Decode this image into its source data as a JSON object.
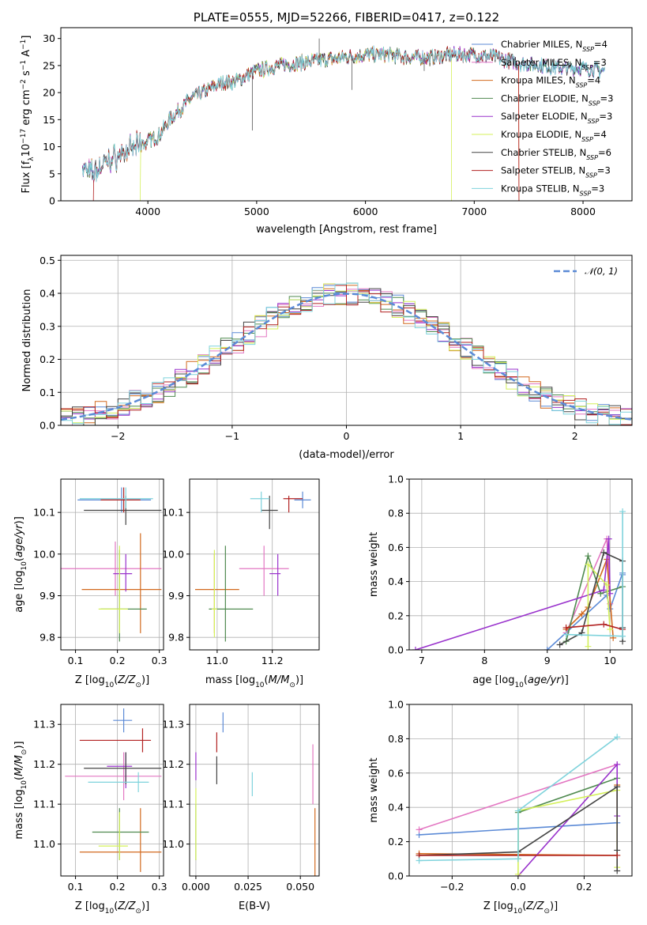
{
  "palette": {
    "Chabrier MILES": "#5b8ad6",
    "Salpeter MILES": "#e377c2",
    "Kroupa MILES": "#d2691e",
    "Chabrier ELODIE": "#4f8a4f",
    "Salpeter ELODIE": "#9932cc",
    "Kroupa ELODIE": "#d4f05a",
    "Chabrier STELIB": "#444444",
    "Salpeter STELIB": "#b22222",
    "Kroupa STELIB": "#7fd3dc"
  },
  "chart_data": [
    {
      "id": "spectrum",
      "type": "line",
      "title": "PLATE=0555, MJD=52266, FIBERID=0417, z=0.122",
      "xlabel": "wavelength [Angstrom, rest frame]",
      "ylabel": "Flux [f_λ10^-17 erg cm^-2 s^-1 A^-1]",
      "xlim": [
        3200,
        8450
      ],
      "ylim": [
        0,
        32
      ],
      "xticks": [
        "4000",
        "5000",
        "6000",
        "7000",
        "8000"
      ],
      "yticks": [
        "0",
        "5",
        "10",
        "15",
        "20",
        "25",
        "30"
      ],
      "grid": false,
      "legend_position": "top-right",
      "legend": [
        {
          "name": "Chabrier MILES",
          "nssp": "4"
        },
        {
          "name": "Salpeter MILES",
          "nssp": "3"
        },
        {
          "name": "Kroupa MILES",
          "nssp": "4"
        },
        {
          "name": "Chabrier ELODIE",
          "nssp": "3"
        },
        {
          "name": "Salpeter ELODIE",
          "nssp": "3"
        },
        {
          "name": "Kroupa ELODIE",
          "nssp": "4"
        },
        {
          "name": "Chabrier STELIB",
          "nssp": "6"
        },
        {
          "name": "Salpeter STELIB",
          "nssp": "3"
        },
        {
          "name": "Kroupa STELIB",
          "nssp": "3"
        }
      ],
      "continuum": {
        "x": [
          3400,
          3500,
          3600,
          3700,
          3800,
          3900,
          4000,
          4100,
          4200,
          4300,
          4400,
          4500,
          4600,
          4700,
          4800,
          4900,
          5000,
          5200,
          5400,
          5600,
          5800,
          6000,
          6200,
          6400,
          6600,
          6800,
          7000,
          7200,
          7400,
          7600,
          7800,
          8000,
          8200
        ],
        "y": [
          6,
          5,
          7,
          8,
          9,
          10,
          11,
          12,
          15,
          17,
          19,
          20,
          21,
          22,
          22,
          23,
          24,
          25,
          25.5,
          26,
          26.5,
          27,
          27,
          26.5,
          26.5,
          27,
          27,
          26.5,
          25.5,
          25,
          24.5,
          24.5,
          24
        ]
      },
      "model_start_wavelength": [
        3400,
        3400,
        3400,
        3400,
        3400,
        3930,
        3400,
        3500,
        3400
      ],
      "model_end_wavelength": [
        8200,
        8200,
        7410,
        8200,
        8200,
        6790,
        8200,
        7410,
        8200
      ]
    },
    {
      "id": "residual-histogram",
      "type": "histogram",
      "xlabel": "(data-model)/error",
      "ylabel": "Normed distribution",
      "xlim": [
        -2.5,
        2.5
      ],
      "ylim": [
        0,
        0.515
      ],
      "xticks": [
        "−2",
        "−1",
        "0",
        "1",
        "2"
      ],
      "yticks": [
        "0.0",
        "0.1",
        "0.2",
        "0.3",
        "0.4",
        "0.5"
      ],
      "grid": true,
      "legend_position": "top-right",
      "legend": [
        "𝒩(0, 1)"
      ],
      "reference_curve": "normal(0,1)",
      "bin_width": 0.1
    },
    {
      "id": "Z-vs-age",
      "type": "errorbar",
      "xlabel": "Z [log10(Z/Z⊙)]",
      "ylabel": "age  [log10(age/yr)]",
      "xlim": [
        0.065,
        0.31
      ],
      "ylim": [
        9.77,
        10.18
      ],
      "xticks": [
        "0.1",
        "0.2",
        "0.3"
      ],
      "yticks": [
        "9.8",
        "9.9",
        "10.0",
        "10.1"
      ],
      "grid": true,
      "points": [
        {
          "x": 0.21,
          "y": 10.13,
          "xerr": [
            0.105,
            0.28
          ],
          "yerr": [
            10.1,
            10.16
          ]
        },
        {
          "x": 0.195,
          "y": 9.965,
          "xerr": [
            0.065,
            0.305
          ],
          "yerr": [
            9.9,
            10.03
          ]
        },
        {
          "x": 0.255,
          "y": 9.915,
          "xerr": [
            0.115,
            0.305
          ],
          "yerr": [
            9.81,
            10.05
          ]
        },
        {
          "x": 0.205,
          "y": 9.868,
          "xerr": [
            0.16,
            0.27
          ],
          "yerr": [
            9.79,
            10.01
          ]
        },
        {
          "x": 0.22,
          "y": 9.953,
          "xerr": [
            0.19,
            0.235
          ],
          "yerr": [
            9.91,
            10.0
          ]
        },
        {
          "x": 0.205,
          "y": 9.868,
          "xerr": [
            0.155,
            0.225
          ],
          "yerr": [
            9.81,
            10.02
          ]
        },
        {
          "x": 0.22,
          "y": 10.105,
          "xerr": [
            0.12,
            0.305
          ],
          "yerr": [
            10.07,
            10.14
          ]
        },
        {
          "x": 0.215,
          "y": 10.13,
          "xerr": [
            0.16,
            0.255
          ],
          "yerr": [
            10.1,
            10.16
          ]
        },
        {
          "x": 0.22,
          "y": 10.133,
          "xerr": [
            0.11,
            0.285
          ],
          "yerr": [
            10.11,
            10.16
          ]
        }
      ]
    },
    {
      "id": "mass-vs-age",
      "type": "errorbar",
      "xlabel": "mass [log10(M/M⊙)]",
      "ylabel": "",
      "xlim": [
        10.9,
        11.37
      ],
      "ylim": [
        9.77,
        10.18
      ],
      "xticks": [
        "11.0",
        "11.2"
      ],
      "yticks": [
        "9.8",
        "9.9",
        "10.0",
        "10.1"
      ],
      "grid": true,
      "points": [
        {
          "x": 11.31,
          "y": 10.13,
          "xerr": [
            11.28,
            11.34
          ],
          "yerr": [
            10.11,
            10.15
          ]
        },
        {
          "x": 11.17,
          "y": 9.965,
          "xerr": [
            11.08,
            11.26
          ],
          "yerr": [
            9.9,
            10.02
          ]
        },
        {
          "x": 10.99,
          "y": 9.915,
          "xerr": [
            10.92,
            11.08
          ],
          "yerr": [
            9.81,
            10.0
          ]
        },
        {
          "x": 11.03,
          "y": 9.868,
          "xerr": [
            10.97,
            11.13
          ],
          "yerr": [
            9.79,
            10.02
          ]
        },
        {
          "x": 11.22,
          "y": 9.953,
          "xerr": [
            11.19,
            11.23
          ],
          "yerr": [
            9.9,
            10.0
          ]
        },
        {
          "x": 10.99,
          "y": 9.868,
          "xerr": [
            10.98,
            11.0
          ],
          "yerr": [
            9.8,
            10.01
          ]
        },
        {
          "x": 11.19,
          "y": 10.105,
          "xerr": [
            11.16,
            11.22
          ],
          "yerr": [
            10.06,
            10.14
          ]
        },
        {
          "x": 11.26,
          "y": 10.133,
          "xerr": [
            11.24,
            11.31
          ],
          "yerr": [
            10.1,
            10.14
          ]
        },
        {
          "x": 11.16,
          "y": 10.133,
          "xerr": [
            11.12,
            11.19
          ],
          "yerr": [
            10.1,
            10.15
          ]
        }
      ]
    },
    {
      "id": "age-vs-mass-weight",
      "type": "line",
      "xlabel": "age  [log10(age/yr)]",
      "ylabel": "mass weight",
      "xlim": [
        6.8,
        10.35
      ],
      "ylim": [
        0,
        1
      ],
      "xticks": [
        "7",
        "8",
        "9",
        "10"
      ],
      "yticks": [
        "0.0",
        "0.2",
        "0.4",
        "0.6",
        "0.8",
        "1.0"
      ],
      "grid": true,
      "series": [
        {
          "x": [
            9.0,
            9.95,
            10.0,
            10.2,
            10.2
          ],
          "y": [
            0.0,
            0.32,
            0.24,
            0.45,
            0.44
          ]
        },
        {
          "x": [
            9.3,
            9.95,
            10.0
          ],
          "y": [
            0.1,
            0.65,
            0.27
          ]
        },
        {
          "x": [
            9.3,
            9.55,
            9.65,
            9.95,
            10.05
          ],
          "y": [
            0.12,
            0.21,
            0.25,
            0.53,
            0.07
          ]
        },
        {
          "x": [
            9.3,
            9.65,
            9.85,
            10.2
          ],
          "y": [
            0.05,
            0.55,
            0.33,
            0.37
          ]
        },
        {
          "x": [
            6.9,
            9.9,
            9.98,
            10.0
          ],
          "y": [
            0.0,
            0.35,
            0.65,
            0.33
          ]
        },
        {
          "x": [
            9.65,
            9.65,
            9.95,
            10.0
          ],
          "y": [
            0.02,
            0.5,
            0.38,
            0.12
          ]
        },
        {
          "x": [
            9.2,
            9.55,
            9.9,
            10.2,
            10.2,
            10.2
          ],
          "y": [
            0.03,
            0.1,
            0.57,
            0.52,
            0.05,
            0.13
          ]
        },
        {
          "x": [
            9.3,
            9.9,
            10.2
          ],
          "y": [
            0.13,
            0.15,
            0.12
          ]
        },
        {
          "x": [
            9.3,
            10.2,
            10.2
          ],
          "y": [
            0.09,
            0.08,
            0.81
          ]
        }
      ]
    },
    {
      "id": "Z-vs-mass",
      "type": "errorbar",
      "xlabel": "Z [log10(Z/Z⊙)]",
      "ylabel": "mass [log10(M/M⊙)]",
      "xlim": [
        0.065,
        0.31
      ],
      "ylim": [
        10.92,
        11.35
      ],
      "xticks": [
        "0.1",
        "0.2",
        "0.3"
      ],
      "yticks": [
        "11.0",
        "11.1",
        "11.2",
        "11.3"
      ],
      "grid": true,
      "points": [
        {
          "x": 0.215,
          "y": 11.31,
          "xerr": [
            0.19,
            0.235
          ],
          "yerr": [
            11.28,
            11.34
          ]
        },
        {
          "x": 0.215,
          "y": 11.17,
          "xerr": [
            0.075,
            0.305
          ],
          "yerr": [
            11.11,
            11.23
          ]
        },
        {
          "x": 0.255,
          "y": 10.98,
          "xerr": [
            0.11,
            0.305
          ],
          "yerr": [
            10.93,
            11.09
          ]
        },
        {
          "x": 0.205,
          "y": 11.03,
          "xerr": [
            0.14,
            0.275
          ],
          "yerr": [
            10.96,
            11.09
          ]
        },
        {
          "x": 0.22,
          "y": 11.195,
          "xerr": [
            0.175,
            0.235
          ],
          "yerr": [
            11.14,
            11.23
          ]
        },
        {
          "x": 0.205,
          "y": 10.995,
          "xerr": [
            0.155,
            0.225
          ],
          "yerr": [
            10.96,
            11.08
          ]
        },
        {
          "x": 0.22,
          "y": 11.19,
          "xerr": [
            0.12,
            0.305
          ],
          "yerr": [
            11.15,
            11.23
          ]
        },
        {
          "x": 0.26,
          "y": 11.26,
          "xerr": [
            0.11,
            0.28
          ],
          "yerr": [
            11.23,
            11.29
          ]
        },
        {
          "x": 0.25,
          "y": 11.155,
          "xerr": [
            0.13,
            0.275
          ],
          "yerr": [
            11.13,
            11.18
          ]
        }
      ]
    },
    {
      "id": "EBV-vs-mass",
      "type": "errorbar",
      "xlabel": "E(B-V)",
      "ylabel": "",
      "xlim": [
        -0.003,
        0.059
      ],
      "ylim": [
        10.92,
        11.35
      ],
      "xticks": [
        "0.000",
        "0.025",
        "0.050"
      ],
      "yticks": [
        "11.0",
        "11.1",
        "11.2",
        "11.3"
      ],
      "grid": true,
      "points": [
        {
          "x": 0.013,
          "y": 11.31,
          "xerr": [
            0.013,
            0.013
          ],
          "yerr": [
            11.28,
            11.33
          ]
        },
        {
          "x": 0.056,
          "y": 11.17,
          "xerr": [
            0.056,
            0.056
          ],
          "yerr": [
            11.1,
            11.25
          ]
        },
        {
          "x": 0.057,
          "y": 10.98,
          "xerr": [
            0.057,
            0.057
          ],
          "yerr": [
            10.92,
            11.09
          ]
        },
        {
          "x": 0.0,
          "y": 11.03,
          "xerr": [
            0.0,
            0.0
          ],
          "yerr": [
            10.96,
            11.1
          ]
        },
        {
          "x": 0.0,
          "y": 11.19,
          "xerr": [
            0.0,
            0.0
          ],
          "yerr": [
            11.16,
            11.23
          ]
        },
        {
          "x": 0.0,
          "y": 11.06,
          "xerr": [
            0.0,
            0.0
          ],
          "yerr": [
            10.96,
            11.14
          ]
        },
        {
          "x": 0.01,
          "y": 11.19,
          "xerr": [
            0.01,
            0.01
          ],
          "yerr": [
            11.15,
            11.22
          ]
        },
        {
          "x": 0.01,
          "y": 11.26,
          "xerr": [
            0.01,
            0.01
          ],
          "yerr": [
            11.23,
            11.28
          ]
        },
        {
          "x": 0.027,
          "y": 11.15,
          "xerr": [
            0.027,
            0.027
          ],
          "yerr": [
            11.12,
            11.18
          ]
        }
      ]
    },
    {
      "id": "Z-vs-mass-weight",
      "type": "line",
      "xlabel": "Z [log10(Z/Z⊙)]",
      "ylabel": "mass weight",
      "xlim": [
        -0.33,
        0.345
      ],
      "ylim": [
        0,
        1
      ],
      "xticks": [
        "−0.2",
        "0.0",
        "0.2"
      ],
      "yticks": [
        "0.0",
        "0.2",
        "0.4",
        "0.6",
        "0.8",
        "1.0"
      ],
      "grid": true,
      "series": [
        {
          "x": [
            -0.3,
            0.3
          ],
          "y": [
            0.24,
            0.31
          ]
        },
        {
          "x": [
            -0.3,
            0.3
          ],
          "y": [
            0.27,
            0.65
          ]
        },
        {
          "x": [
            -0.3,
            0.3,
            0.3
          ],
          "y": [
            0.13,
            0.12,
            0.53
          ]
        },
        {
          "x": [
            0.0,
            0.0,
            0.3
          ],
          "y": [
            0.1,
            0.37,
            0.57
          ]
        },
        {
          "x": [
            0.0,
            0.3,
            0.3
          ],
          "y": [
            0.0,
            0.65,
            0.35
          ]
        },
        {
          "x": [
            0.0,
            0.0,
            0.3,
            0.3
          ],
          "y": [
            0.01,
            0.38,
            0.5,
            0.05
          ]
        },
        {
          "x": [
            -0.3,
            0.0,
            0.3,
            0.3,
            0.3
          ],
          "y": [
            0.12,
            0.14,
            0.52,
            0.03,
            0.15
          ]
        },
        {
          "x": [
            -0.3,
            0.0,
            0.3
          ],
          "y": [
            0.12,
            0.12,
            0.12
          ]
        },
        {
          "x": [
            -0.3,
            0.0,
            0.0,
            0.3
          ],
          "y": [
            0.09,
            0.1,
            0.38,
            0.81
          ]
        }
      ]
    }
  ]
}
